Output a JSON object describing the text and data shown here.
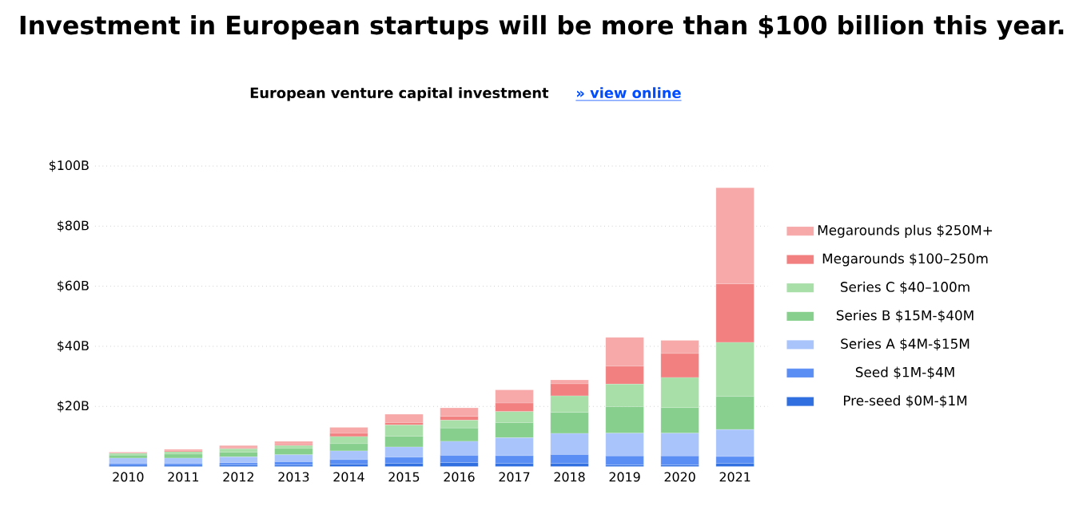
{
  "chart_data": {
    "type": "bar",
    "stacked": true,
    "title": "Investment in European startups will be more than $100 billion this year.",
    "subtitle": "European venture capital investment",
    "annotations": [
      "» view online"
    ],
    "categories": [
      "2010",
      "2011",
      "2012",
      "2013",
      "2014",
      "2015",
      "2016",
      "2017",
      "2018",
      "2019",
      "2020",
      "2021"
    ],
    "series": [
      {
        "name": "Pre-seed $0M-$1M",
        "color": "#2f6fe0",
        "values": [
          0.4,
          0.4,
          0.5,
          0.5,
          0.8,
          1,
          1.3,
          1,
          1,
          0.5,
          0.5,
          1
        ]
      },
      {
        "name": "Seed $1M-$4M",
        "color": "#5b8ef5",
        "values": [
          0.6,
          0.6,
          0.7,
          1.1,
          1.5,
          2.1,
          2.4,
          2.6,
          3,
          3,
          3,
          2.3
        ]
      },
      {
        "name": "Series A $4M-$15M",
        "color": "#a9c4fb",
        "values": [
          1.8,
          1.8,
          2,
          2.3,
          2.9,
          3.4,
          4.7,
          6,
          7,
          7.6,
          7.6,
          9
        ]
      },
      {
        "name": "Series B $15M-$40M",
        "color": "#86cf8c",
        "values": [
          1,
          1.3,
          1.6,
          2.1,
          2.4,
          3.6,
          4.4,
          5,
          7,
          8.8,
          8.5,
          11
        ]
      },
      {
        "name": "Series C $40–100m",
        "color": "#a8dea8",
        "values": [
          0.6,
          0.8,
          1.1,
          1,
          2.4,
          3.7,
          2.6,
          3.7,
          5.5,
          7.5,
          10,
          18
        ]
      },
      {
        "name": "Megarounds $100–250m",
        "color": "#f28080",
        "values": [
          0,
          0.3,
          0.3,
          0.3,
          1,
          0.8,
          1.3,
          2.8,
          4,
          6,
          8,
          19.5
        ]
      },
      {
        "name": "Megarounds plus $250M+",
        "color": "#f7a8a8",
        "values": [
          0.4,
          0.5,
          0.8,
          1.1,
          2,
          2.8,
          2.8,
          4.4,
          1.3,
          9.6,
          4.4,
          32
        ]
      }
    ],
    "ylim": [
      0,
      100
    ],
    "yticks": [
      {
        "value": 20,
        "label": "$20B"
      },
      {
        "value": 40,
        "label": "$40B"
      },
      {
        "value": 60,
        "label": "$60B"
      },
      {
        "value": 80,
        "label": "$80B"
      },
      {
        "value": 100,
        "label": "$100B"
      }
    ],
    "grid": "y",
    "legend": "right"
  }
}
